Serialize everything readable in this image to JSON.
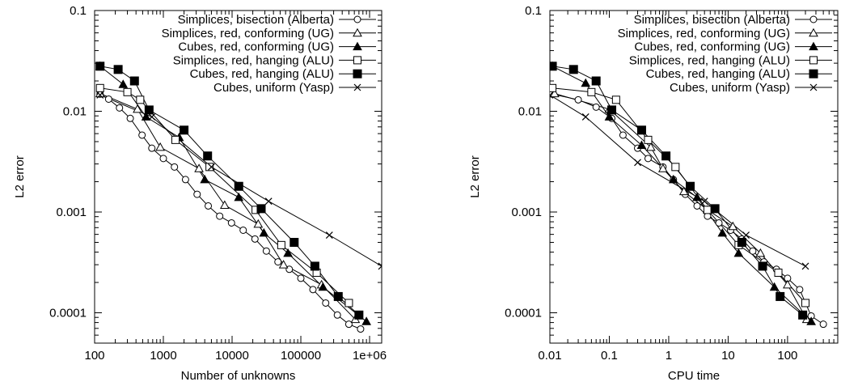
{
  "chart_data": [
    {
      "type": "line",
      "xlabel": "Number of unknowns",
      "ylabel": "L2 error",
      "xscale": "log",
      "yscale": "log",
      "xlim": [
        100,
        1500000
      ],
      "ylim": [
        5e-05,
        0.1
      ],
      "xticks": [
        100,
        1000,
        10000,
        100000,
        1000000
      ],
      "xtick_labels": [
        "100",
        "1000",
        "10000",
        "100000",
        "1e+06"
      ],
      "yticks": [
        0.1,
        0.01,
        0.001,
        0.0001
      ],
      "ytick_labels": [
        "0.1",
        "0.01",
        "0.001",
        "0.0001"
      ],
      "legend_position": "top-right",
      "series": [
        {
          "name": "Simplices, bisection (Alberta)",
          "marker": "circle",
          "x": [
            120,
            160,
            230,
            330,
            490,
            680,
            1000,
            1450,
            2100,
            3100,
            4500,
            6600,
            9800,
            14500,
            21500,
            31500,
            46500,
            68000,
            100000,
            150000,
            230000,
            340000,
            500000,
            740000
          ],
          "y": [
            0.0148,
            0.0132,
            0.0108,
            0.0085,
            0.0058,
            0.0043,
            0.0034,
            0.0028,
            0.0021,
            0.0015,
            0.00115,
            0.00091,
            0.00078,
            0.00066,
            0.00054,
            0.00041,
            0.00032,
            0.00027,
            0.00022,
            0.00017,
            0.000125,
            9.5e-05,
            7.7e-05,
            6.9e-05
          ]
        },
        {
          "name": "Simplices, red, conforming (UG)",
          "marker": "triangle-open",
          "x": [
            120,
            420,
            900,
            3300,
            7800,
            24000,
            56000,
            200000,
            620000
          ],
          "y": [
            0.015,
            0.0105,
            0.0044,
            0.0027,
            0.00117,
            0.00076,
            0.0003,
            0.00019,
            8.6e-05
          ]
        },
        {
          "name": "Cubes, red, conforming (UG)",
          "marker": "triangle-filled",
          "x": [
            120,
            260,
            560,
            1700,
            4000,
            12500,
            29000,
            65000,
            210000,
            900000
          ],
          "y": [
            0.028,
            0.0185,
            0.0088,
            0.0055,
            0.0021,
            0.0014,
            0.00062,
            0.00039,
            0.00018,
            8.2e-05
          ]
        },
        {
          "name": "Simplices, red, hanging (ALU)",
          "marker": "square-open",
          "x": [
            120,
            300,
            460,
            1500,
            4700,
            22000,
            52000,
            170000,
            500000
          ],
          "y": [
            0.017,
            0.0155,
            0.013,
            0.0052,
            0.0028,
            0.00105,
            0.00047,
            0.00025,
            0.000125
          ]
        },
        {
          "name": "Cubes, red, hanging (ALU)",
          "marker": "square-filled",
          "x": [
            120,
            220,
            380,
            620,
            2000,
            4400,
            12500,
            26500,
            80000,
            160000,
            350000,
            700000
          ],
          "y": [
            0.028,
            0.026,
            0.02,
            0.0103,
            0.0065,
            0.0036,
            0.0018,
            0.00108,
            0.0005,
            0.00029,
            0.000145,
            9.5e-05
          ]
        },
        {
          "name": "Cubes, uniform (Yasp)",
          "marker": "cross",
          "x": [
            120,
            680,
            5000,
            34000,
            260000,
            1500000
          ],
          "y": [
            0.0145,
            0.0088,
            0.0028,
            0.00128,
            0.00059,
            0.00029
          ]
        }
      ]
    },
    {
      "type": "line",
      "xlabel": "CPU time",
      "ylabel": "L2 error",
      "xscale": "log",
      "yscale": "log",
      "xlim": [
        0.01,
        700
      ],
      "ylim": [
        5e-05,
        0.1
      ],
      "xticks": [
        0.01,
        0.1,
        1,
        10,
        100
      ],
      "xtick_labels": [
        "0.01",
        "0.1",
        "1",
        "10",
        "100"
      ],
      "yticks": [
        0.1,
        0.01,
        0.001,
        0.0001
      ],
      "ytick_labels": [
        "0.1",
        "0.01",
        "0.001",
        "0.0001"
      ],
      "legend_position": "top-right",
      "series": [
        {
          "name": "Simplices, bisection (Alberta)",
          "marker": "circle",
          "x": [
            0.011,
            0.03,
            0.06,
            0.11,
            0.17,
            0.3,
            0.45,
            0.8,
            1.2,
            1.9,
            3,
            4.5,
            7,
            11,
            17,
            26,
            40,
            65,
            100,
            160,
            250,
            400
          ],
          "y": [
            0.0148,
            0.013,
            0.011,
            0.0085,
            0.0058,
            0.0043,
            0.0034,
            0.0028,
            0.0021,
            0.0015,
            0.00115,
            0.00091,
            0.00078,
            0.00066,
            0.00054,
            0.00041,
            0.00032,
            0.00027,
            0.00022,
            0.00017,
            9.3e-05,
            7.7e-05
          ]
        },
        {
          "name": "Simplices, red, conforming (UG)",
          "marker": "triangle-open",
          "x": [
            0.012,
            0.1,
            0.5,
            0.8,
            1.8,
            4.5,
            12,
            35,
            100,
            210
          ],
          "y": [
            0.015,
            0.0105,
            0.0044,
            0.0027,
            0.0016,
            0.00105,
            0.00072,
            0.00039,
            0.00019,
            8.6e-05
          ]
        },
        {
          "name": "Cubes, red, conforming (UG)",
          "marker": "triangle-filled",
          "x": [
            0.011,
            0.04,
            0.1,
            0.35,
            1.2,
            3,
            8,
            15,
            60,
            250
          ],
          "y": [
            0.028,
            0.019,
            0.0088,
            0.0046,
            0.0021,
            0.0014,
            0.00062,
            0.00039,
            0.00018,
            8.2e-05
          ]
        },
        {
          "name": "Simplices, red, hanging (ALU)",
          "marker": "square-open",
          "x": [
            0.011,
            0.05,
            0.13,
            0.45,
            1.3,
            4.5,
            15,
            70,
            200
          ],
          "y": [
            0.017,
            0.0155,
            0.013,
            0.0052,
            0.0028,
            0.00105,
            0.00047,
            0.00025,
            0.000125
          ]
        },
        {
          "name": "Cubes, red, hanging (ALU)",
          "marker": "square-filled",
          "x": [
            0.011,
            0.025,
            0.06,
            0.11,
            0.35,
            0.9,
            2.3,
            6,
            17,
            38,
            75,
            180
          ],
          "y": [
            0.028,
            0.026,
            0.02,
            0.0103,
            0.0065,
            0.0036,
            0.0018,
            0.00108,
            0.0005,
            0.00029,
            0.000145,
            9.5e-05
          ]
        },
        {
          "name": "Cubes, uniform (Yasp)",
          "marker": "cross",
          "x": [
            0.01,
            0.04,
            0.3,
            4,
            20,
            200
          ],
          "y": [
            0.0145,
            0.0088,
            0.0031,
            0.00128,
            0.00059,
            0.00029
          ]
        }
      ]
    }
  ]
}
